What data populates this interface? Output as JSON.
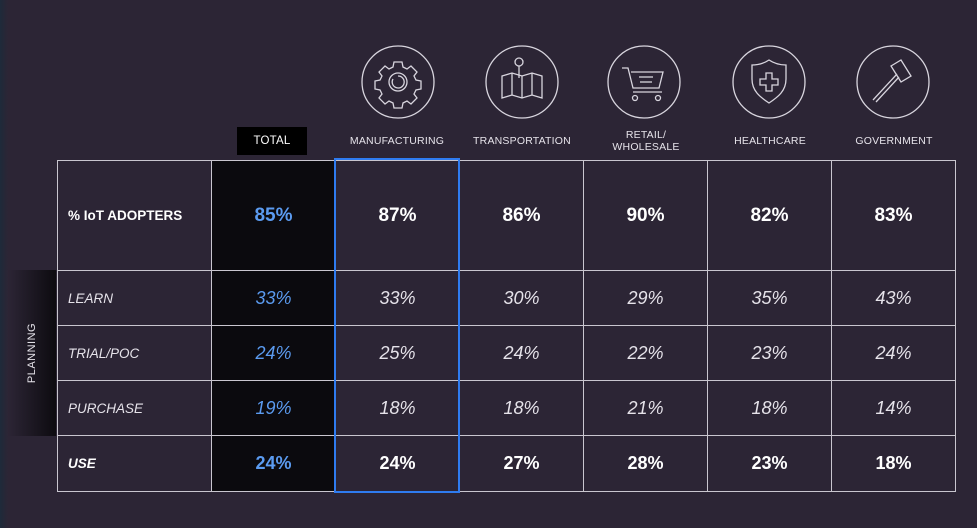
{
  "colors": {
    "accent": "#2f7cf0",
    "total_value": "#5b9bf0",
    "background": "#2c2535"
  },
  "chart_data": {
    "type": "table",
    "side_label": "PLANNING",
    "columns": [
      {
        "key": "total",
        "label": "TOTAL",
        "icon": ""
      },
      {
        "key": "manufacturing",
        "label": "MANUFACTURING",
        "icon": "gear-icon"
      },
      {
        "key": "transportation",
        "label": "TRANSPORTATION",
        "icon": "map-pin-icon"
      },
      {
        "key": "retail",
        "label": "RETAIL/\nWHOLESALE",
        "icon": "shopping-cart-icon"
      },
      {
        "key": "healthcare",
        "label": "HEALTHCARE",
        "icon": "medical-shield-icon"
      },
      {
        "key": "government",
        "label": "GOVERNMENT",
        "icon": "gavel-icon"
      }
    ],
    "rows": [
      {
        "label": "% IoT ADOPTERS",
        "values": [
          "85%",
          "87%",
          "86%",
          "90%",
          "82%",
          "83%"
        ]
      },
      {
        "label": "LEARN",
        "values": [
          "33%",
          "33%",
          "30%",
          "29%",
          "35%",
          "43%"
        ]
      },
      {
        "label": "TRIAL/POC",
        "values": [
          "24%",
          "25%",
          "24%",
          "22%",
          "23%",
          "24%"
        ]
      },
      {
        "label": "PURCHASE",
        "values": [
          "19%",
          "18%",
          "18%",
          "21%",
          "18%",
          "14%"
        ]
      },
      {
        "label": "USE",
        "values": [
          "24%",
          "24%",
          "27%",
          "28%",
          "23%",
          "18%"
        ]
      }
    ],
    "highlighted_column": "MANUFACTURING"
  }
}
